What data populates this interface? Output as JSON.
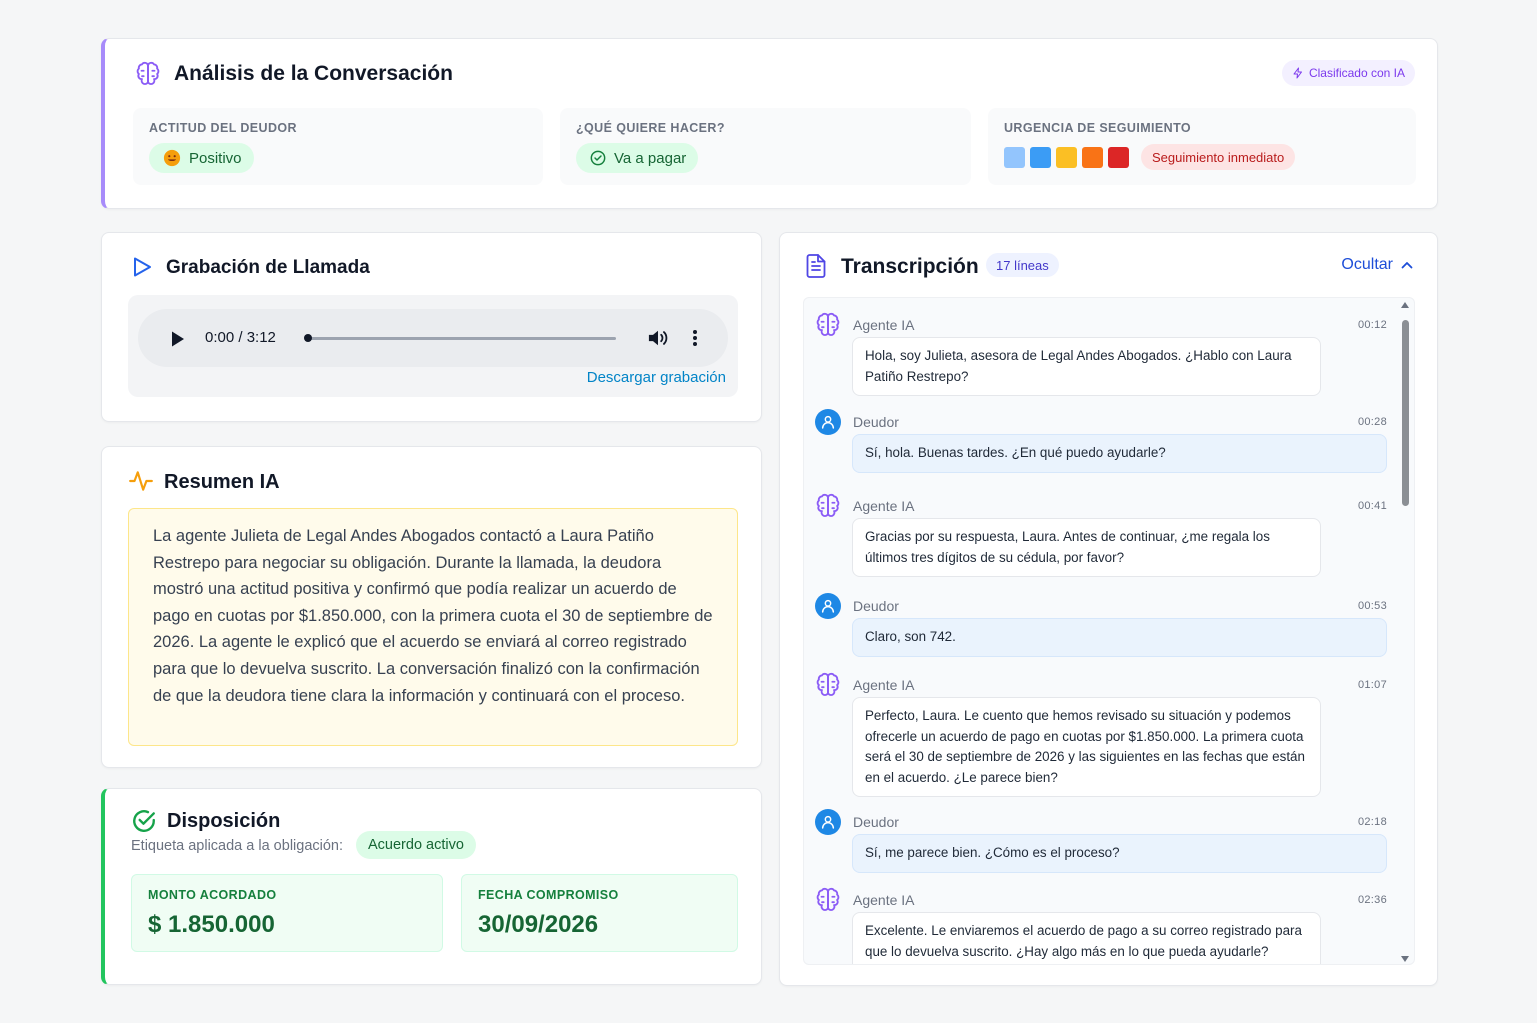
{
  "analysis": {
    "title": "Análisis de la Conversación",
    "ai_badge": "Clasificado con IA",
    "attitude": {
      "label": "ACTITUD DEL DEUDOR",
      "value": "Positivo",
      "icon": "smile-emoji-icon"
    },
    "intent": {
      "label": "¿QUÉ QUIERE HACER?",
      "value": "Va a pagar",
      "icon": "check-circle-icon"
    },
    "urgency": {
      "label": "URGENCIA DE SEGUIMIENTO",
      "level_colors": [
        "#93c5fd",
        "#3b9cf5",
        "#fbbf24",
        "#f97316",
        "#dc2626"
      ],
      "status": "Seguimiento inmediato"
    }
  },
  "recording": {
    "title": "Grabación de Llamada",
    "time": "0:00 / 3:12",
    "progress": 0,
    "download_label": "Descargar grabación"
  },
  "summary": {
    "title": "Resumen IA",
    "text": "La agente Julieta de Legal Andes Abogados contactó a Laura Patiño Restrepo para negociar su obligación. Durante la llamada, la deudora mostró una actitud positiva y confirmó que podía realizar un acuerdo de pago en cuotas por $1.850.000, con la primera cuota el 30 de septiembre de 2026. La agente le explicó que el acuerdo se enviará al correo registrado para que lo devuelva suscrito. La conversación finalizó con la confirmación de que la deudora tiene clara la información y continuará con el proceso."
  },
  "disposition": {
    "title": "Disposición",
    "label": "Etiqueta aplicada a la obligación:",
    "tag": "Acuerdo activo",
    "amount_label": "MONTO ACORDADO",
    "amount": "$ 1.850.000",
    "date_label": "FECHA COMPROMISO",
    "date": "30/09/2026"
  },
  "transcript": {
    "title": "Transcripción",
    "lines_badge": "17 líneas",
    "hide_label": "Ocultar",
    "messages": [
      {
        "speaker": "Agente IA",
        "role": "agent",
        "time": "00:12",
        "text": "Hola, soy Julieta, asesora de Legal Andes Abogados. ¿Hablo con Laura Patiño Restrepo?"
      },
      {
        "speaker": "Deudor",
        "role": "debtor",
        "time": "00:28",
        "text": "Sí, hola. Buenas tardes. ¿En qué puedo ayudarle?"
      },
      {
        "speaker": "Agente IA",
        "role": "agent",
        "time": "00:41",
        "text": "Gracias por su respuesta, Laura. Antes de continuar, ¿me regala los últimos tres dígitos de su cédula, por favor?"
      },
      {
        "speaker": "Deudor",
        "role": "debtor",
        "time": "00:53",
        "text": "Claro, son 742."
      },
      {
        "speaker": "Agente IA",
        "role": "agent",
        "time": "01:07",
        "text": "Perfecto, Laura. Le cuento que hemos revisado su situación y podemos ofrecerle un acuerdo de pago en cuotas por $1.850.000. La primera cuota será el 30 de septiembre de 2026 y las siguientes en las fechas que están en el acuerdo. ¿Le parece bien?"
      },
      {
        "speaker": "Deudor",
        "role": "debtor",
        "time": "02:18",
        "text": "Sí, me parece bien. ¿Cómo es el proceso?"
      },
      {
        "speaker": "Agente IA",
        "role": "agent",
        "time": "02:36",
        "text": "Excelente. Le enviaremos el acuerdo de pago a su correo registrado para que lo devuelva suscrito. ¿Hay algo más en lo que pueda ayudarle?"
      }
    ]
  }
}
